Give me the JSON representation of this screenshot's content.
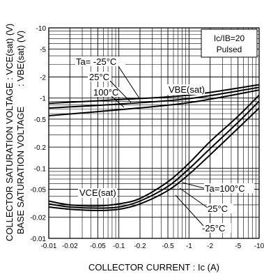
{
  "chart_data": {
    "type": "line",
    "x_scale": "log",
    "y_scale": "log",
    "xlim": [
      -0.01,
      -10
    ],
    "ylim": [
      -0.01,
      -10
    ],
    "grid": true,
    "x_ticks": [
      "-0.01",
      "-0.02",
      "-0.05",
      "-0.1",
      "-0.2",
      "-0.5",
      "-1",
      "-2",
      "-5",
      "-10"
    ],
    "y_ticks": [
      "-10",
      "-5",
      "-2",
      "-1",
      "-0.5",
      "-0.2",
      "-0.1",
      "-0.05",
      "-0.02",
      "-0.01"
    ],
    "xlabel": "COLLECTOR CURRENT : Ic (A)",
    "ylabel_line1": "COLLECTOR SATURATION VOLTAGE : VCE(sat) (V)",
    "ylabel_line2": "BASE SATURATION VOLTAGE        : VBE(sat) (V)",
    "condition": {
      "line1": "Ic/IB=20",
      "line2": "Pulsed"
    },
    "group_labels": {
      "vbe": "VBE(sat)",
      "vce": "VCE(sat)"
    },
    "series": [
      {
        "name": "Ta= -25°C",
        "group": "VBE(sat)",
        "x": [
          -0.01,
          -0.1,
          -1,
          -10
        ],
        "y": [
          -0.84,
          -0.95,
          -1.1,
          -1.55
        ]
      },
      {
        "name": "25°C",
        "group": "VBE(sat)",
        "x": [
          -0.01,
          -0.1,
          -1,
          -10
        ],
        "y": [
          -0.72,
          -0.82,
          -0.98,
          -1.42
        ]
      },
      {
        "name": "100°C",
        "group": "VBE(sat)",
        "x": [
          -0.01,
          -0.1,
          -1,
          -10
        ],
        "y": [
          -0.56,
          -0.68,
          -0.86,
          -1.3
        ]
      },
      {
        "name": "Ta=100°C",
        "group": "VCE(sat)",
        "x": [
          -0.01,
          -0.02,
          -0.05,
          -0.1,
          -0.2,
          -0.5,
          -1,
          -2,
          -5,
          -10
        ],
        "y": [
          -0.034,
          -0.03,
          -0.029,
          -0.031,
          -0.037,
          -0.064,
          -0.118,
          -0.24,
          -0.55,
          -1.1
        ]
      },
      {
        "name": "25°C",
        "group": "VCE(sat)",
        "x": [
          -0.01,
          -0.02,
          -0.05,
          -0.1,
          -0.2,
          -0.5,
          -1,
          -2,
          -5,
          -10
        ],
        "y": [
          -0.031,
          -0.028,
          -0.027,
          -0.028,
          -0.034,
          -0.055,
          -0.098,
          -0.19,
          -0.45,
          -0.9
        ]
      },
      {
        "name": "-25°C",
        "group": "VCE(sat)",
        "x": [
          -0.01,
          -0.02,
          -0.05,
          -0.1,
          -0.2,
          -0.5,
          -1,
          -2,
          -5,
          -10
        ],
        "y": [
          -0.028,
          -0.026,
          -0.025,
          -0.026,
          -0.031,
          -0.048,
          -0.082,
          -0.155,
          -0.37,
          -0.72
        ]
      }
    ]
  }
}
